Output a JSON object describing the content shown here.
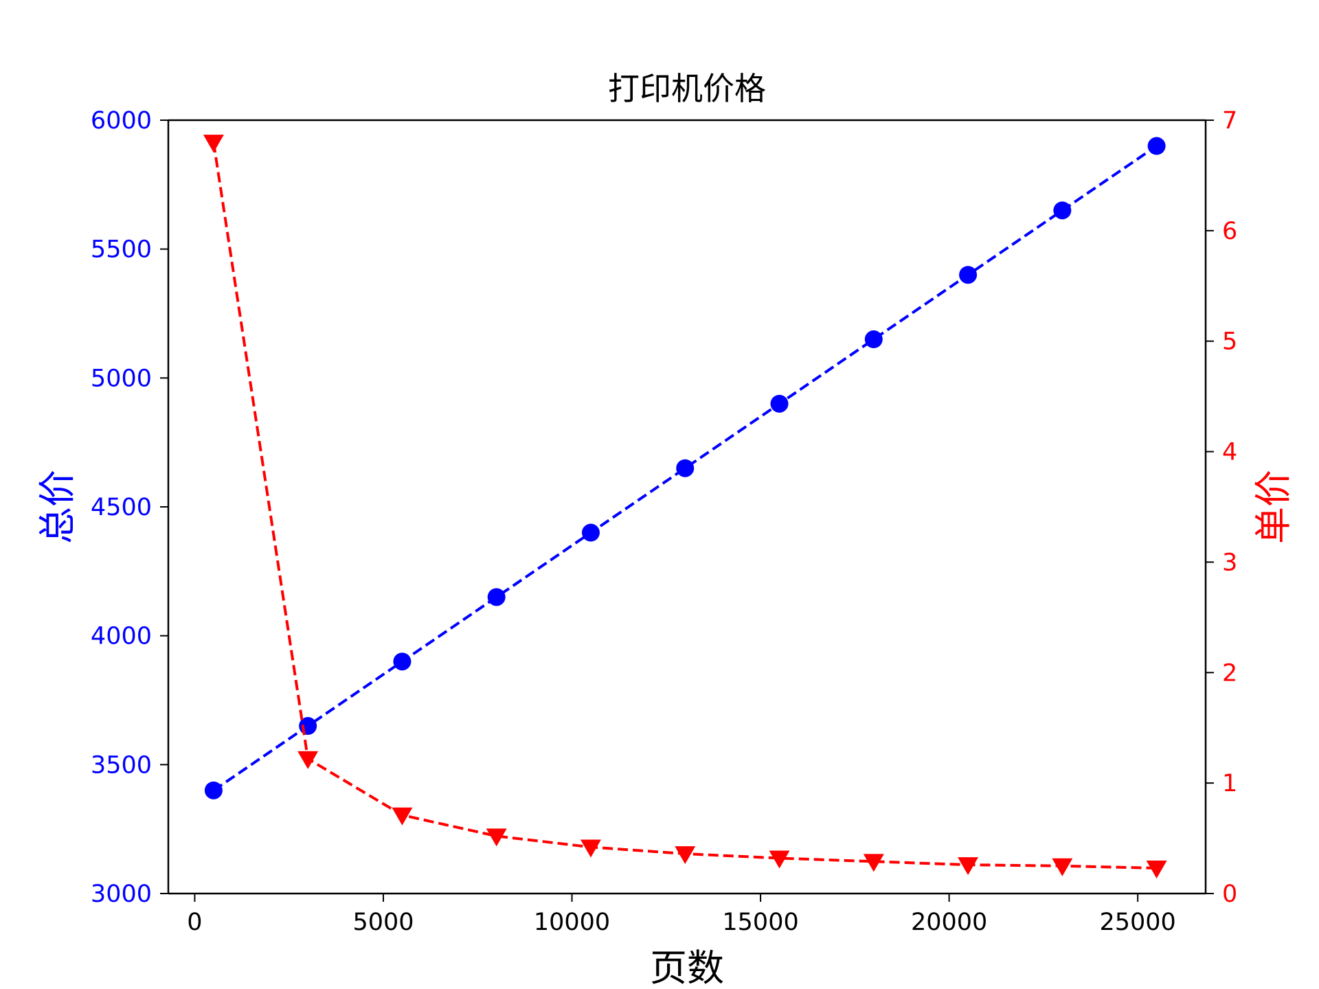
{
  "chart_data": {
    "type": "line",
    "title": "打印机价格",
    "xlabel": "页数",
    "ylabel_left": "总价",
    "ylabel_right": "单价",
    "xlim": [
      -700,
      26800
    ],
    "ylim_left": [
      3000,
      6000
    ],
    "ylim_right": [
      0,
      7
    ],
    "x_ticks": [
      0,
      5000,
      10000,
      15000,
      20000,
      25000
    ],
    "y_left_ticks": [
      3000,
      3500,
      4000,
      4500,
      5000,
      5500,
      6000
    ],
    "y_right_ticks": [
      0,
      1,
      2,
      3,
      4,
      5,
      6,
      7
    ],
    "grid": false,
    "colors": {
      "left_axis": "#0000ff",
      "right_axis": "#ff0000",
      "frame": "#000000"
    },
    "x": [
      500,
      3000,
      5500,
      8000,
      10500,
      13000,
      15500,
      18000,
      20500,
      23000,
      25500
    ],
    "series": [
      {
        "axis": "left",
        "color": "#0000ff",
        "line_style": "dashed",
        "marker": "circle",
        "values": [
          3400,
          3650,
          3900,
          4150,
          4400,
          4650,
          4900,
          5150,
          5400,
          5650,
          5900
        ]
      },
      {
        "axis": "right",
        "color": "#ff0000",
        "line_style": "dashed",
        "marker": "triangle-down",
        "values": [
          6.8,
          1.22,
          0.71,
          0.52,
          0.42,
          0.36,
          0.32,
          0.29,
          0.26,
          0.25,
          0.23
        ]
      }
    ]
  }
}
